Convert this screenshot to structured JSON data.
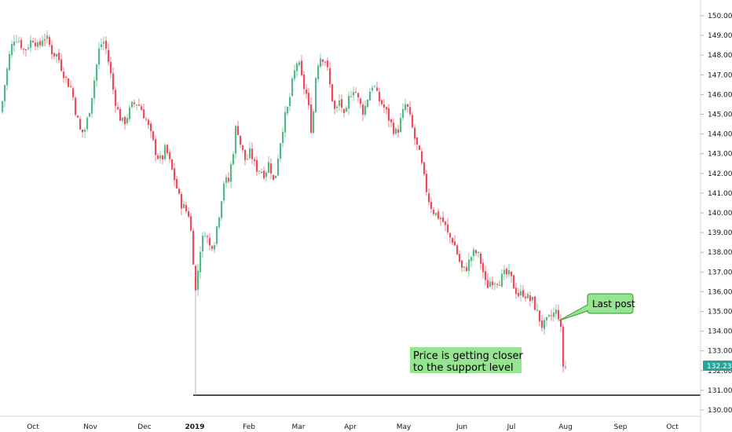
{
  "chart_data": {
    "type": "candlestick",
    "instrument_note": "",
    "y_range": [
      129.6,
      150.4
    ],
    "y_ticks": [
      "130.000",
      "131.000",
      "132.000",
      "133.000",
      "134.000",
      "135.000",
      "136.000",
      "137.000",
      "138.000",
      "139.000",
      "140.000",
      "141.000",
      "142.000",
      "143.000",
      "144.000",
      "145.000",
      "146.000",
      "147.000",
      "148.000",
      "149.000",
      "150.000"
    ],
    "x_ticks": [
      "Oct",
      "Nov",
      "Dec",
      "2019",
      "Feb",
      "Mar",
      "Apr",
      "May",
      "Jun",
      "Jul",
      "Aug",
      "Sep",
      "Oct"
    ],
    "last_price": "132.236",
    "support_level": 130.75,
    "colors": {
      "up": "#53b987",
      "down": "#eb4d5c",
      "price_tag": "#26a69a",
      "annotation_bg": "#96e391",
      "annotation_border": "#2e9a2a",
      "support_line": "#131722"
    },
    "annotations": [
      {
        "text_lines": [
          "Last post"
        ],
        "kind": "callout",
        "target_price": 134.6
      },
      {
        "text_lines": [
          "Price is getting closer",
          "to the support level"
        ],
        "kind": "label"
      }
    ],
    "series_path": [
      [
        0,
        145.1
      ],
      [
        6,
        146.8
      ],
      [
        12,
        148.2
      ],
      [
        18,
        149.0
      ],
      [
        24,
        148.7
      ],
      [
        30,
        148.2
      ],
      [
        36,
        148.6
      ],
      [
        42,
        148.9
      ],
      [
        48,
        148.3
      ],
      [
        54,
        149.0
      ],
      [
        60,
        148.7
      ],
      [
        66,
        148.1
      ],
      [
        72,
        148.0
      ],
      [
        78,
        147.3
      ],
      [
        84,
        146.7
      ],
      [
        90,
        146.3
      ],
      [
        96,
        145.0
      ],
      [
        102,
        144.0
      ],
      [
        108,
        144.3
      ],
      [
        114,
        145.5
      ],
      [
        120,
        147.0
      ],
      [
        126,
        148.5
      ],
      [
        132,
        148.7
      ],
      [
        138,
        147.5
      ],
      [
        144,
        146.0
      ],
      [
        150,
        145.0
      ],
      [
        156,
        144.5
      ],
      [
        162,
        145.0
      ],
      [
        168,
        145.5
      ],
      [
        174,
        145.6
      ],
      [
        180,
        145.2
      ],
      [
        186,
        144.6
      ],
      [
        192,
        143.8
      ],
      [
        198,
        143.0
      ],
      [
        204,
        142.6
      ],
      [
        210,
        143.3
      ],
      [
        216,
        142.4
      ],
      [
        222,
        141.6
      ],
      [
        228,
        140.6
      ],
      [
        234,
        140.2
      ],
      [
        240,
        139.9
      ],
      [
        244,
        138.2
      ],
      [
        248,
        136.0
      ],
      [
        254,
        138.2
      ],
      [
        260,
        139.1
      ],
      [
        266,
        138.3
      ],
      [
        272,
        138.6
      ],
      [
        278,
        140.0
      ],
      [
        284,
        141.6
      ],
      [
        290,
        141.6
      ],
      [
        296,
        143.2
      ],
      [
        300,
        144.6
      ],
      [
        306,
        143.3
      ],
      [
        312,
        142.6
      ],
      [
        318,
        143.1
      ],
      [
        324,
        142.3
      ],
      [
        330,
        142.2
      ],
      [
        336,
        142.0
      ],
      [
        342,
        142.6
      ],
      [
        348,
        141.4
      ],
      [
        354,
        143.2
      ],
      [
        360,
        144.6
      ],
      [
        366,
        145.4
      ],
      [
        372,
        146.8
      ],
      [
        378,
        147.8
      ],
      [
        384,
        146.6
      ],
      [
        390,
        145.9
      ],
      [
        396,
        144.0
      ],
      [
        402,
        147.5
      ],
      [
        408,
        148.0
      ],
      [
        414,
        147.7
      ],
      [
        420,
        146.2
      ],
      [
        426,
        145.0
      ],
      [
        432,
        145.8
      ],
      [
        438,
        144.6
      ],
      [
        444,
        146.0
      ],
      [
        450,
        146.4
      ],
      [
        456,
        145.6
      ],
      [
        462,
        145.1
      ],
      [
        468,
        146.0
      ],
      [
        474,
        146.6
      ],
      [
        480,
        145.8
      ],
      [
        486,
        145.5
      ],
      [
        492,
        145.0
      ],
      [
        498,
        144.4
      ],
      [
        504,
        144.0
      ],
      [
        510,
        144.8
      ],
      [
        516,
        145.6
      ],
      [
        522,
        144.6
      ],
      [
        528,
        143.6
      ],
      [
        534,
        142.8
      ],
      [
        540,
        141.5
      ],
      [
        546,
        140.5
      ],
      [
        552,
        140.0
      ],
      [
        558,
        139.8
      ],
      [
        564,
        139.5
      ],
      [
        570,
        138.8
      ],
      [
        576,
        138.6
      ],
      [
        582,
        137.8
      ],
      [
        588,
        137.0
      ],
      [
        594,
        137.3
      ],
      [
        600,
        137.9
      ],
      [
        606,
        138.0
      ],
      [
        612,
        137.4
      ],
      [
        618,
        136.2
      ],
      [
        624,
        136.6
      ],
      [
        630,
        136.6
      ],
      [
        636,
        136.6
      ],
      [
        642,
        136.9
      ],
      [
        648,
        136.8
      ],
      [
        654,
        136.2
      ],
      [
        660,
        135.8
      ],
      [
        666,
        136.0
      ],
      [
        672,
        135.6
      ],
      [
        678,
        135.5
      ],
      [
        684,
        134.8
      ],
      [
        690,
        134.2
      ],
      [
        696,
        134.5
      ],
      [
        702,
        134.8
      ],
      [
        708,
        135.0
      ],
      [
        712,
        134.6
      ],
      [
        716,
        132.2
      ],
      [
        722,
        132.3
      ]
    ]
  }
}
